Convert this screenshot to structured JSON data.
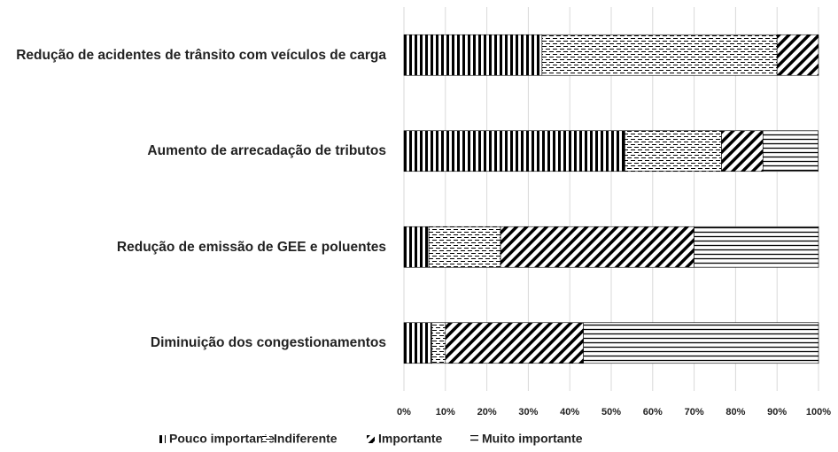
{
  "chart_data": {
    "type": "bar",
    "orientation": "horizontal",
    "stacked": true,
    "categories": [
      "Redução de acidentes de trânsito com veículos de carga",
      "Aumento de arrecadação de tributos",
      "Redução de emissão de GEE e poluentes",
      "Diminuição dos congestionamentos"
    ],
    "series": [
      {
        "name": "Pouco importante",
        "color": "#000000",
        "pattern": "vertical",
        "values": [
          33.3,
          53.3,
          6,
          6.7
        ]
      },
      {
        "name": "Indiferente",
        "color": "#000000",
        "pattern": "dashes",
        "values": [
          56.7,
          23.3,
          17.3,
          3.3
        ]
      },
      {
        "name": "Importante",
        "color": "#000000",
        "pattern": "diagonal",
        "values": [
          10,
          10,
          46.7,
          33.3
        ]
      },
      {
        "name": "Muito importante",
        "color": "#000000",
        "pattern": "horizontal",
        "values": [
          0,
          13.3,
          30,
          56.7
        ]
      }
    ],
    "xlim": [
      0,
      100
    ],
    "xticks": [
      {
        "value": 0,
        "label": "0%"
      },
      {
        "value": 10,
        "label": "10%"
      },
      {
        "value": 20,
        "label": "20%"
      },
      {
        "value": 30,
        "label": "30%"
      },
      {
        "value": 40,
        "label": "40%"
      },
      {
        "value": 50,
        "label": "50%"
      },
      {
        "value": 60,
        "label": "60%"
      },
      {
        "value": 70,
        "label": "70%"
      },
      {
        "value": 80,
        "label": "80%"
      },
      {
        "value": 90,
        "label": "90%"
      },
      {
        "value": 100,
        "label": "100%"
      }
    ],
    "grid": true,
    "legend": "bottom"
  }
}
